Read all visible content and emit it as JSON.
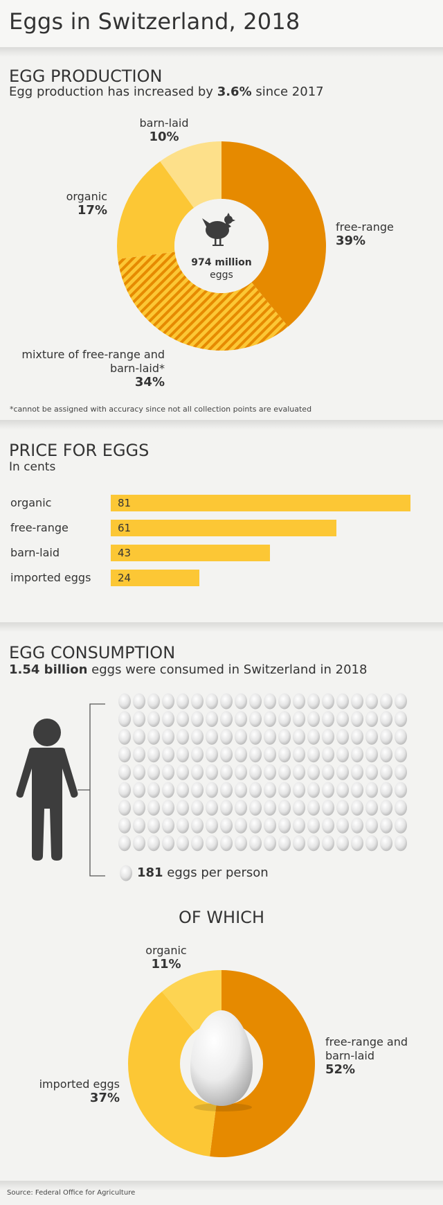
{
  "page": {
    "title": "Eggs in Switzerland, 2018"
  },
  "production": {
    "heading": "EGG PRODUCTION",
    "subtitle_pre": "Egg production has increased by ",
    "subtitle_bold": "3.6%",
    "subtitle_post": " since 2017",
    "center_value": "974 million",
    "center_unit": "eggs",
    "footnote": "*cannot be assigned with accuracy since not all collection points are evaluated"
  },
  "price": {
    "heading": "PRICE FOR EGGS",
    "subtitle": "In cents"
  },
  "consumption": {
    "heading": "EGG CONSUMPTION",
    "subtitle_bold": "1.54 billion",
    "subtitle_post": " eggs were consumed in Switzerland in 2018",
    "per_person_bold": "181",
    "per_person_post": " eggs per person",
    "of_which": "OF WHICH"
  },
  "source": "Source: Federal Office for Agriculture",
  "colors": {
    "dark_orange": "#e68a00",
    "yellow": "#fcc735",
    "light_yellow": "#fde08a",
    "medium_yellow": "#fdd452",
    "bar": "#fcc735",
    "person": "#3d3d3d",
    "background": "#f3f3f1"
  },
  "icons": [
    "hen-icon",
    "person-icon",
    "egg-icon"
  ],
  "chart_data": [
    {
      "type": "pie",
      "title": "EGG PRODUCTION",
      "categories": [
        "free-range",
        "mixture of free-range and barn-laid*",
        "organic",
        "barn-laid"
      ],
      "labels": [
        "39%",
        "34%",
        "17%",
        "10%"
      ],
      "values": [
        39,
        34,
        17,
        10
      ],
      "units": "%"
    },
    {
      "type": "bar",
      "title": "PRICE FOR EGGS",
      "ylabel": "In cents",
      "categories": [
        "organic",
        "free-range",
        "barn-laid",
        "imported eggs"
      ],
      "values": [
        81,
        61,
        43,
        24
      ],
      "xlim": [
        0,
        81
      ]
    },
    {
      "type": "pie",
      "title": "OF WHICH",
      "categories": [
        "free-range and barn-laid",
        "imported eggs",
        "organic"
      ],
      "labels": [
        "52%",
        "37%",
        "11%"
      ],
      "values": [
        52,
        37,
        11
      ],
      "units": "%"
    }
  ]
}
